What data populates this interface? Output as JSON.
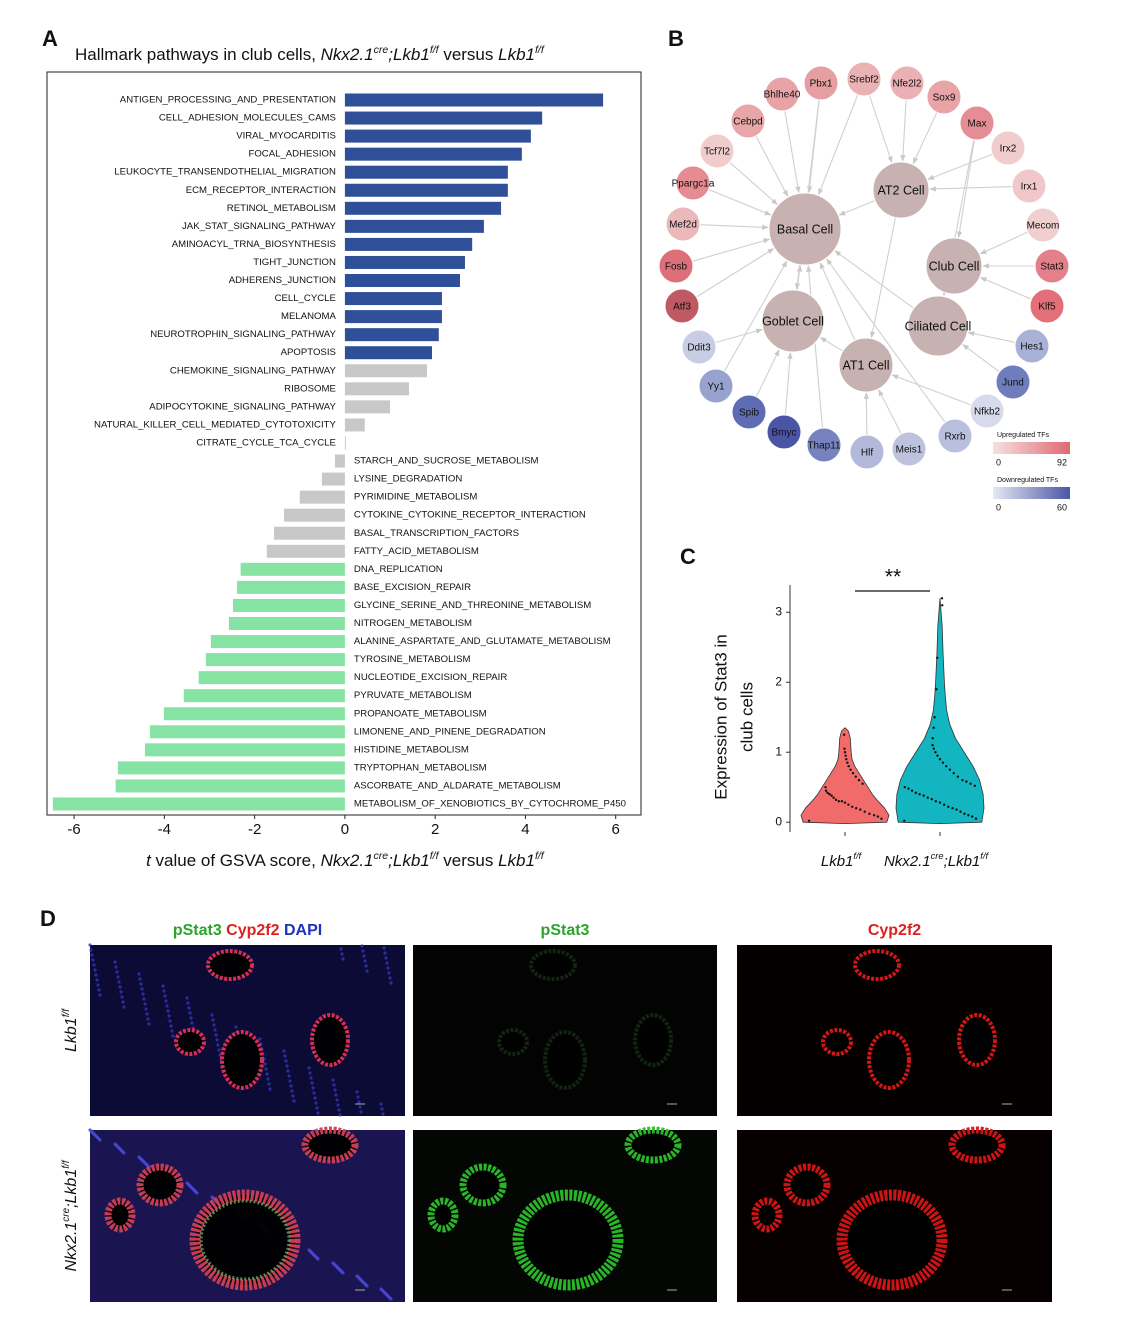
{
  "panel_labels": [
    "A",
    "B",
    "C",
    "D"
  ],
  "chart_data": [
    {
      "type": "bar",
      "orientation": "horizontal",
      "title": [
        [
          "Hallmark pathways in club cells, ",
          ""
        ],
        [
          "Nkx2.1",
          "i"
        ],
        [
          "cre",
          "is"
        ],
        [
          ";Lkb1",
          "i"
        ],
        [
          "f/f",
          "is"
        ],
        [
          " versus ",
          ""
        ],
        [
          "Lkb1",
          "i"
        ],
        [
          "f/f",
          "is"
        ]
      ],
      "categories": [
        "ANTIGEN_PROCESSING_AND_PRESENTATION",
        "CELL_ADHESION_MOLECULES_CAMS",
        "VIRAL_MYOCARDITIS",
        "FOCAL_ADHESION",
        "LEUKOCYTE_TRANSENDOTHELIAL_MIGRATION",
        "ECM_RECEPTOR_INTERACTION",
        "RETINOL_METABOLISM",
        "JAK_STAT_SIGNALING_PATHWAY",
        "AMINOACYL_TRNA_BIOSYNTHESIS",
        "TIGHT_JUNCTION",
        "ADHERENS_JUNCTION",
        "CELL_CYCLE",
        "MELANOMA",
        "NEUROTROPHIN_SIGNALING_PATHWAY",
        "APOPTOSIS",
        "CHEMOKINE_SIGNALING_PATHWAY",
        "RIBOSOME",
        "ADIPOCYTOKINE_SIGNALING_PATHWAY",
        "NATURAL_KILLER_CELL_MEDIATED_CYTOTOXICITY",
        "CITRATE_CYCLE_TCA_CYCLE",
        "STARCH_AND_SUCROSE_METABOLISM",
        "LYSINE_DEGRADATION",
        "PYRIMIDINE_METABOLISM",
        "CYTOKINE_CYTOKINE_RECEPTOR_INTERACTION",
        "BASAL_TRANSCRIPTION_FACTORS",
        "FATTY_ACID_METABOLISM",
        "DNA_REPLICATION",
        "BASE_EXCISION_REPAIR",
        "GLYCINE_SERINE_AND_THREONINE_METABOLISM",
        "NITROGEN_METABOLISM",
        "ALANINE_ASPARTATE_AND_GLUTAMATE_METABOLISM",
        "TYROSINE_METABOLISM",
        "NUCLEOTIDE_EXCISION_REPAIR",
        "PYRUVATE_METABOLISM",
        "PROPANOATE_METABOLISM",
        "LIMONENE_AND_PINENE_DEGRADATION",
        "HISTIDINE_METABOLISM",
        "TRYPTOPHAN_METABOLISM",
        "ASCORBATE_AND_ALDARATE_METABOLISM",
        "METABOLISM_OF_XENOBIOTICS_BY_CYTOCHROME_P450"
      ],
      "values": [
        5.72,
        4.37,
        4.12,
        3.92,
        3.61,
        3.61,
        3.46,
        3.08,
        2.82,
        2.66,
        2.55,
        2.15,
        2.15,
        2.08,
        1.93,
        1.82,
        1.42,
        1.0,
        0.44,
        0.02,
        -0.22,
        -0.51,
        -1.0,
        -1.35,
        -1.57,
        -1.73,
        -2.31,
        -2.39,
        -2.48,
        -2.57,
        -2.97,
        -3.08,
        -3.24,
        -3.57,
        -4.01,
        -4.32,
        -4.43,
        -5.03,
        -5.08,
        -6.47
      ],
      "colors": [
        "#2f4f99",
        "#2f4f99",
        "#2f4f99",
        "#2f4f99",
        "#2f4f99",
        "#2f4f99",
        "#2f4f99",
        "#2f4f99",
        "#2f4f99",
        "#2f4f99",
        "#2f4f99",
        "#2f4f99",
        "#2f4f99",
        "#2f4f99",
        "#2f4f99",
        "#c8c8c8",
        "#c8c8c8",
        "#c8c8c8",
        "#c8c8c8",
        "#c8c8c8",
        "#c8c8c8",
        "#c8c8c8",
        "#c8c8c8",
        "#c8c8c8",
        "#c8c8c8",
        "#c8c8c8",
        "#86e3a3",
        "#86e3a3",
        "#86e3a3",
        "#86e3a3",
        "#86e3a3",
        "#86e3a3",
        "#86e3a3",
        "#86e3a3",
        "#86e3a3",
        "#86e3a3",
        "#86e3a3",
        "#86e3a3",
        "#86e3a3",
        "#86e3a3"
      ],
      "xlim": [
        -6.6,
        6.56
      ],
      "xticks": [
        -6,
        -4,
        -2,
        0,
        2,
        4,
        6
      ],
      "xlabel": [
        [
          "t",
          "i"
        ],
        [
          " value of GSVA score, ",
          ""
        ],
        [
          "Nkx2.1",
          "i"
        ],
        [
          "cre",
          "is"
        ],
        [
          ";Lkb1",
          "i"
        ],
        [
          "f/f",
          "is"
        ],
        [
          " versus ",
          ""
        ],
        [
          "Lkb1",
          "i"
        ],
        [
          "f/f",
          "is"
        ]
      ]
    },
    {
      "type": "violin",
      "ylim": [
        -0.14,
        3.39
      ],
      "yticks": [
        0,
        1,
        2,
        3
      ],
      "ylabel": [
        "Expression of Stat3 in",
        "club cells"
      ],
      "annotation": "**",
      "groups": [
        {
          "name": [
            [
              "Lkb1",
              "i"
            ],
            [
              "f/f",
              "is"
            ]
          ],
          "color": "#f26b6b",
          "density": {
            "y": [
              -0.02,
              0,
              0.1,
              0.2,
              0.3,
              0.4,
              0.5,
              0.6,
              0.7,
              0.8,
              0.9,
              1.0,
              1.1,
              1.2,
              1.3,
              1.35
            ],
            "width": [
              0,
              0.95,
              1,
              0.9,
              0.75,
              0.62,
              0.52,
              0.42,
              0.32,
              0.22,
              0.16,
              0.14,
              0.13,
              0.12,
              0.08,
              0
            ]
          },
          "points": [
            0.02,
            0.05,
            0.08,
            0.1,
            0.12,
            0.15,
            0.18,
            0.2,
            0.22,
            0.25,
            0.28,
            0.3,
            0.3,
            0.32,
            0.35,
            0.38,
            0.4,
            0.42,
            0.45,
            0.5,
            0.55,
            0.6,
            0.65,
            0.7,
            0.75,
            0.8,
            0.85,
            0.9,
            0.95,
            1.0,
            1.05,
            1.25
          ]
        },
        {
          "name": [
            [
              "Nkx2.1",
              "i"
            ],
            [
              "cre",
              "is"
            ],
            [
              ";Lkb1",
              "i"
            ],
            [
              "f/f",
              "is"
            ]
          ],
          "color": "#12b5c0",
          "density": {
            "y": [
              -0.02,
              0,
              0.2,
              0.4,
              0.6,
              0.8,
              1.0,
              1.2,
              1.4,
              1.6,
              1.8,
              2.0,
              2.4,
              2.8,
              3.2
            ],
            "width": [
              0,
              0.95,
              1,
              0.98,
              0.9,
              0.75,
              0.55,
              0.35,
              0.22,
              0.15,
              0.12,
              0.1,
              0.07,
              0.05,
              0
            ]
          },
          "points": [
            0.02,
            0.05,
            0.08,
            0.1,
            0.12,
            0.15,
            0.18,
            0.2,
            0.22,
            0.25,
            0.28,
            0.3,
            0.33,
            0.35,
            0.38,
            0.4,
            0.42,
            0.45,
            0.48,
            0.5,
            0.52,
            0.55,
            0.58,
            0.6,
            0.65,
            0.7,
            0.75,
            0.8,
            0.85,
            0.9,
            0.95,
            1.0,
            1.05,
            1.1,
            1.2,
            1.35,
            1.5,
            1.9,
            2.35,
            3.1,
            3.2
          ]
        }
      ]
    }
  ],
  "network": {
    "nodes": [
      {
        "label": "Basal Cell",
        "color": "#c7b1b1",
        "kind": "hub"
      },
      {
        "label": "AT2 Cell",
        "color": "#c7b1b1",
        "kind": "hub"
      },
      {
        "label": "Club Cell",
        "color": "#c7b1b1",
        "kind": "hub"
      },
      {
        "label": "Goblet Cell",
        "color": "#c7b1b1",
        "kind": "hub"
      },
      {
        "label": "Ciliated Cell",
        "color": "#c7b1b1",
        "kind": "hub"
      },
      {
        "label": "AT1 Cell",
        "color": "#c7b1b1",
        "kind": "hub"
      },
      {
        "label": "Bhlhe40",
        "color": "#e8a3a6",
        "kind": "tf"
      },
      {
        "label": "Pbx1",
        "color": "#e59ea2",
        "kind": "tf"
      },
      {
        "label": "Srebf2",
        "color": "#eab2b4",
        "kind": "tf"
      },
      {
        "label": "Nfe2l2",
        "color": "#eab0b3",
        "kind": "tf"
      },
      {
        "label": "Sox9",
        "color": "#e8a4a7",
        "kind": "tf"
      },
      {
        "label": "Cebpd",
        "color": "#e9a6a9",
        "kind": "tf"
      },
      {
        "label": "Max",
        "color": "#e58d94",
        "kind": "tf"
      },
      {
        "label": "Tcf7l2",
        "color": "#f0cccd",
        "kind": "tf"
      },
      {
        "label": "Irx2",
        "color": "#f0cccd",
        "kind": "tf"
      },
      {
        "label": "Ppargc1a",
        "color": "#e68b91",
        "kind": "tf"
      },
      {
        "label": "Irx1",
        "color": "#f0c8ca",
        "kind": "tf"
      },
      {
        "label": "Mef2d",
        "color": "#ecb9bb",
        "kind": "tf"
      },
      {
        "label": "Mecom",
        "color": "#f0cfd0",
        "kind": "tf"
      },
      {
        "label": "Fosb",
        "color": "#dc6f78",
        "kind": "tf"
      },
      {
        "label": "Stat3",
        "color": "#e48089",
        "kind": "tf"
      },
      {
        "label": "Atf3",
        "color": "#c05a62",
        "kind": "tf"
      },
      {
        "label": "Klf5",
        "color": "#e36f79",
        "kind": "tf"
      },
      {
        "label": "Ddit3",
        "color": "#c9cde4",
        "kind": "tf"
      },
      {
        "label": "Hes1",
        "color": "#a9b1d6",
        "kind": "tf"
      },
      {
        "label": "Yy1",
        "color": "#98a2cf",
        "kind": "tf"
      },
      {
        "label": "Jund",
        "color": "#6f7dbd",
        "kind": "tf"
      },
      {
        "label": "Spib",
        "color": "#5e6cb4",
        "kind": "tf"
      },
      {
        "label": "Nfkb2",
        "color": "#d7daeb",
        "kind": "tf"
      },
      {
        "label": "Bmyc",
        "color": "#4a55a6",
        "kind": "tf"
      },
      {
        "label": "Rxrb",
        "color": "#b9c0de",
        "kind": "tf"
      },
      {
        "label": "Thap11",
        "color": "#7783c0",
        "kind": "tf"
      },
      {
        "label": "Hlf",
        "color": "#b2b9db",
        "kind": "tf"
      },
      {
        "label": "Meis1",
        "color": "#bdc3df",
        "kind": "tf"
      }
    ],
    "edges": [
      [
        6,
        0
      ],
      [
        7,
        0
      ],
      [
        8,
        0
      ],
      [
        9,
        1
      ],
      [
        10,
        1
      ],
      [
        11,
        0
      ],
      [
        12,
        2
      ],
      [
        13,
        0
      ],
      [
        14,
        1
      ],
      [
        15,
        0
      ],
      [
        16,
        1
      ],
      [
        17,
        0
      ],
      [
        18,
        2
      ],
      [
        19,
        0
      ],
      [
        20,
        2
      ],
      [
        21,
        0
      ],
      [
        22,
        2
      ],
      [
        23,
        3
      ],
      [
        24,
        4
      ],
      [
        25,
        0
      ],
      [
        26,
        4
      ],
      [
        27,
        3
      ],
      [
        28,
        5
      ],
      [
        29,
        3
      ],
      [
        30,
        0
      ],
      [
        31,
        0
      ],
      [
        32,
        5
      ],
      [
        33,
        5
      ],
      [
        5,
        0
      ],
      [
        5,
        3
      ],
      [
        4,
        0
      ],
      [
        1,
        0
      ],
      [
        1,
        5
      ],
      [
        3,
        0
      ],
      [
        7,
        3
      ],
      [
        12,
        4
      ],
      [
        8,
        1
      ]
    ],
    "legend": [
      {
        "title": "Upregulated TFs",
        "colors": [
          "#f7e0e0",
          "#de6a73"
        ],
        "lim": [
          0,
          92
        ],
        "ticks": [
          0,
          92
        ]
      },
      {
        "title": "Downregulated TFs",
        "colors": [
          "#e5e8f3",
          "#4a56a7"
        ],
        "lim": [
          0,
          60
        ],
        "ticks": [
          0,
          60
        ]
      }
    ]
  },
  "images": {
    "columns": [
      [
        [
          "pStat3 ",
          "",
          "#2aa52a"
        ],
        [
          "Cyp2f2 ",
          "",
          "#e02020"
        ],
        [
          "DAPI",
          "",
          "#2030c0"
        ]
      ],
      [
        [
          "pStat3",
          "",
          "#2aa52a"
        ]
      ],
      [
        [
          "Cyp2f2",
          "",
          "#e02020"
        ]
      ]
    ],
    "rows": [
      [
        [
          "Lkb1",
          "i"
        ],
        [
          "f/f",
          "is"
        ]
      ],
      [
        [
          "Nkx2.1",
          "i"
        ],
        [
          "cre",
          "is"
        ],
        [
          ";Lkb1",
          "i"
        ],
        [
          "f/f",
          "is"
        ]
      ]
    ]
  }
}
